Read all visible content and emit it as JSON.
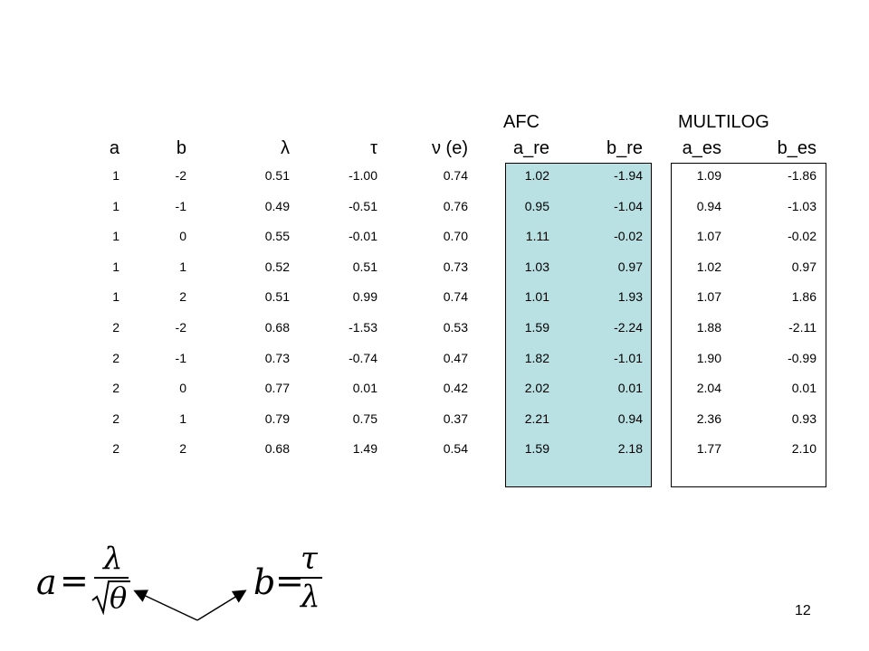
{
  "group_headers": {
    "afc": "AFC",
    "multilog": "MULTILOG"
  },
  "columns": [
    "a",
    "b",
    "λ",
    "τ",
    "ν (e)",
    "a_re",
    "b_re",
    "a_es",
    "b_es"
  ],
  "rows": [
    [
      "1",
      "-2",
      "0.51",
      "-1.00",
      "0.74",
      "1.02",
      "-1.94",
      "1.09",
      "-1.86"
    ],
    [
      "1",
      "-1",
      "0.49",
      "-0.51",
      "0.76",
      "0.95",
      "-1.04",
      "0.94",
      "-1.03"
    ],
    [
      "1",
      "0",
      "0.55",
      "-0.01",
      "0.70",
      "1.11",
      "-0.02",
      "1.07",
      "-0.02"
    ],
    [
      "1",
      "1",
      "0.52",
      "0.51",
      "0.73",
      "1.03",
      "0.97",
      "1.02",
      "0.97"
    ],
    [
      "1",
      "2",
      "0.51",
      "0.99",
      "0.74",
      "1.01",
      "1.93",
      "1.07",
      "1.86"
    ],
    [
      "2",
      "-2",
      "0.68",
      "-1.53",
      "0.53",
      "1.59",
      "-2.24",
      "1.88",
      "-2.11"
    ],
    [
      "2",
      "-1",
      "0.73",
      "-0.74",
      "0.47",
      "1.82",
      "-1.01",
      "1.90",
      "-0.99"
    ],
    [
      "2",
      "0",
      "0.77",
      "0.01",
      "0.42",
      "2.02",
      "0.01",
      "2.04",
      "0.01"
    ],
    [
      "2",
      "1",
      "0.79",
      "0.75",
      "0.37",
      "2.21",
      "0.94",
      "2.36",
      "0.93"
    ],
    [
      "2",
      "2",
      "0.68",
      "1.49",
      "0.54",
      "1.59",
      "2.18",
      "1.77",
      "2.10"
    ]
  ],
  "formulas": {
    "a": {
      "lhs": "a",
      "equals": "=",
      "numerator": "λ",
      "radicand": "θ"
    },
    "b": {
      "lhs": "b",
      "equals": "=",
      "numerator": "τ",
      "denominator": "λ"
    }
  },
  "page_number": "12",
  "colors": {
    "afc_fill": "#b9e0e2",
    "border": "#000000"
  }
}
